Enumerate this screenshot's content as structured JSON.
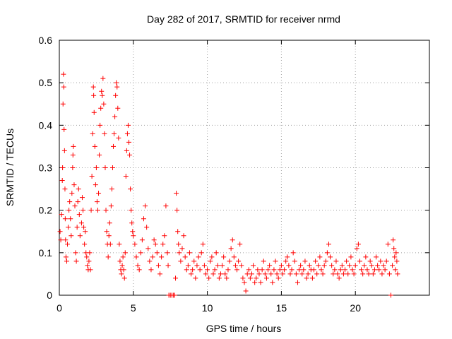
{
  "chart_data": {
    "type": "scatter",
    "title": "Day 282 of 2017, SRMTID for receiver nrmd",
    "xlabel": "GPS time / hours",
    "ylabel": "SRMTID / TECUs",
    "xlim": [
      0,
      25
    ],
    "ylim": [
      0,
      0.6
    ],
    "x_ticks": [
      0,
      5,
      10,
      15,
      20
    ],
    "x_tick_labels": [
      "0",
      "5",
      "10",
      "15",
      "20"
    ],
    "y_ticks": [
      0,
      0.1,
      0.2,
      0.3,
      0.4,
      0.5,
      0.6
    ],
    "y_tick_labels": [
      "0",
      "0.1",
      "0.2",
      "0.3",
      "0.4",
      "0.5",
      "0.6"
    ],
    "grid": true,
    "marker": "+",
    "series": [
      {
        "name": "SRMTID",
        "color": "#ff0000",
        "points": [
          [
            0.05,
            0.15
          ],
          [
            0.1,
            0.13
          ],
          [
            0.15,
            0.19
          ],
          [
            0.2,
            0.27
          ],
          [
            0.22,
            0.3
          ],
          [
            0.25,
            0.45
          ],
          [
            0.28,
            0.52
          ],
          [
            0.3,
            0.49
          ],
          [
            0.32,
            0.39
          ],
          [
            0.35,
            0.34
          ],
          [
            0.38,
            0.25
          ],
          [
            0.4,
            0.18
          ],
          [
            0.42,
            0.13
          ],
          [
            0.45,
            0.09
          ],
          [
            0.5,
            0.08
          ],
          [
            0.55,
            0.12
          ],
          [
            0.6,
            0.16
          ],
          [
            0.65,
            0.2
          ],
          [
            0.7,
            0.22
          ],
          [
            0.75,
            0.18
          ],
          [
            0.8,
            0.14
          ],
          [
            0.85,
            0.24
          ],
          [
            0.9,
            0.3
          ],
          [
            0.92,
            0.33
          ],
          [
            0.95,
            0.35
          ],
          [
            1.0,
            0.26
          ],
          [
            1.05,
            0.21
          ],
          [
            1.1,
            0.1
          ],
          [
            1.15,
            0.08
          ],
          [
            1.2,
            0.16
          ],
          [
            1.25,
            0.22
          ],
          [
            1.3,
            0.25
          ],
          [
            1.35,
            0.19
          ],
          [
            1.4,
            0.14
          ],
          [
            1.5,
            0.17
          ],
          [
            1.55,
            0.23
          ],
          [
            1.6,
            0.2
          ],
          [
            1.65,
            0.16
          ],
          [
            1.7,
            0.12
          ],
          [
            1.75,
            0.15
          ],
          [
            1.8,
            0.1
          ],
          [
            1.85,
            0.09
          ],
          [
            1.9,
            0.07
          ],
          [
            1.95,
            0.06
          ],
          [
            2.0,
            0.08
          ],
          [
            2.05,
            0.1
          ],
          [
            2.1,
            0.06
          ],
          [
            2.15,
            0.2
          ],
          [
            2.2,
            0.28
          ],
          [
            2.25,
            0.38
          ],
          [
            2.3,
            0.49
          ],
          [
            2.32,
            0.47
          ],
          [
            2.35,
            0.43
          ],
          [
            2.4,
            0.35
          ],
          [
            2.45,
            0.26
          ],
          [
            2.5,
            0.3
          ],
          [
            2.55,
            0.22
          ],
          [
            2.6,
            0.2
          ],
          [
            2.65,
            0.24
          ],
          [
            2.7,
            0.33
          ],
          [
            2.75,
            0.4
          ],
          [
            2.8,
            0.44
          ],
          [
            2.85,
            0.48
          ],
          [
            2.9,
            0.47
          ],
          [
            2.95,
            0.51
          ],
          [
            3.0,
            0.45
          ],
          [
            3.05,
            0.38
          ],
          [
            3.1,
            0.3
          ],
          [
            3.15,
            0.2
          ],
          [
            3.2,
            0.15
          ],
          [
            3.25,
            0.12
          ],
          [
            3.3,
            0.09
          ],
          [
            3.35,
            0.14
          ],
          [
            3.4,
            0.17
          ],
          [
            3.45,
            0.12
          ],
          [
            3.5,
            0.21
          ],
          [
            3.55,
            0.25
          ],
          [
            3.6,
            0.3
          ],
          [
            3.65,
            0.35
          ],
          [
            3.7,
            0.38
          ],
          [
            3.75,
            0.42
          ],
          [
            3.8,
            0.47
          ],
          [
            3.85,
            0.5
          ],
          [
            3.9,
            0.49
          ],
          [
            3.95,
            0.44
          ],
          [
            4.0,
            0.37
          ],
          [
            4.05,
            0.12
          ],
          [
            4.1,
            0.08
          ],
          [
            4.15,
            0.06
          ],
          [
            4.2,
            0.05
          ],
          [
            4.25,
            0.07
          ],
          [
            4.3,
            0.09
          ],
          [
            4.35,
            0.06
          ],
          [
            4.4,
            0.04
          ],
          [
            4.45,
            0.1
          ],
          [
            4.5,
            0.28
          ],
          [
            4.55,
            0.34
          ],
          [
            4.6,
            0.38
          ],
          [
            4.65,
            0.4
          ],
          [
            4.7,
            0.36
          ],
          [
            4.75,
            0.33
          ],
          [
            4.8,
            0.25
          ],
          [
            4.85,
            0.2
          ],
          [
            4.9,
            0.17
          ],
          [
            4.95,
            0.15
          ],
          [
            5.0,
            0.14
          ],
          [
            5.1,
            0.12
          ],
          [
            5.2,
            0.09
          ],
          [
            5.3,
            0.07
          ],
          [
            5.4,
            0.06
          ],
          [
            5.5,
            0.1
          ],
          [
            5.6,
            0.13
          ],
          [
            5.7,
            0.18
          ],
          [
            5.8,
            0.21
          ],
          [
            5.9,
            0.16
          ],
          [
            6.0,
            0.11
          ],
          [
            6.1,
            0.08
          ],
          [
            6.2,
            0.06
          ],
          [
            6.3,
            0.09
          ],
          [
            6.4,
            0.13
          ],
          [
            6.5,
            0.12
          ],
          [
            6.6,
            0.1
          ],
          [
            6.7,
            0.07
          ],
          [
            6.8,
            0.05
          ],
          [
            6.9,
            0.09
          ],
          [
            7.0,
            0.12
          ],
          [
            7.1,
            0.14
          ],
          [
            7.2,
            0.21
          ],
          [
            7.3,
            0.1
          ],
          [
            7.35,
            0.07
          ],
          [
            7.4,
            0.0
          ],
          [
            7.5,
            0.0
          ],
          [
            7.6,
            0.0
          ],
          [
            7.7,
            0.0
          ],
          [
            7.8,
            0.0
          ],
          [
            7.85,
            0.04
          ],
          [
            7.9,
            0.24
          ],
          [
            7.95,
            0.2
          ],
          [
            8.0,
            0.15
          ],
          [
            8.05,
            0.12
          ],
          [
            8.1,
            0.1
          ],
          [
            8.2,
            0.08
          ],
          [
            8.3,
            0.11
          ],
          [
            8.4,
            0.14
          ],
          [
            8.5,
            0.09
          ],
          [
            8.6,
            0.06
          ],
          [
            8.7,
            0.07
          ],
          [
            8.8,
            0.1
          ],
          [
            8.9,
            0.05
          ],
          [
            9.0,
            0.06
          ],
          [
            9.1,
            0.08
          ],
          [
            9.2,
            0.04
          ],
          [
            9.3,
            0.07
          ],
          [
            9.4,
            0.09
          ],
          [
            9.5,
            0.06
          ],
          [
            9.6,
            0.1
          ],
          [
            9.7,
            0.12
          ],
          [
            9.8,
            0.07
          ],
          [
            9.9,
            0.05
          ],
          [
            10.0,
            0.06
          ],
          [
            10.1,
            0.04
          ],
          [
            10.2,
            0.08
          ],
          [
            10.3,
            0.09
          ],
          [
            10.4,
            0.05
          ],
          [
            10.5,
            0.06
          ],
          [
            10.6,
            0.1
          ],
          [
            10.7,
            0.07
          ],
          [
            10.8,
            0.04
          ],
          [
            10.9,
            0.05
          ],
          [
            11.0,
            0.07
          ],
          [
            11.1,
            0.09
          ],
          [
            11.2,
            0.05
          ],
          [
            11.3,
            0.04
          ],
          [
            11.4,
            0.06
          ],
          [
            11.5,
            0.08
          ],
          [
            11.6,
            0.11
          ],
          [
            11.7,
            0.13
          ],
          [
            11.8,
            0.09
          ],
          [
            11.9,
            0.07
          ],
          [
            12.0,
            0.06
          ],
          [
            12.1,
            0.08
          ],
          [
            12.2,
            0.12
          ],
          [
            12.3,
            0.07
          ],
          [
            12.4,
            0.04
          ],
          [
            12.5,
            0.03
          ],
          [
            12.6,
            0.01
          ],
          [
            12.7,
            0.05
          ],
          [
            12.8,
            0.06
          ],
          [
            12.9,
            0.04
          ],
          [
            13.0,
            0.05
          ],
          [
            13.1,
            0.07
          ],
          [
            13.2,
            0.03
          ],
          [
            13.3,
            0.04
          ],
          [
            13.4,
            0.06
          ],
          [
            13.5,
            0.05
          ],
          [
            13.6,
            0.03
          ],
          [
            13.7,
            0.06
          ],
          [
            13.8,
            0.08
          ],
          [
            13.9,
            0.05
          ],
          [
            14.0,
            0.04
          ],
          [
            14.1,
            0.06
          ],
          [
            14.2,
            0.07
          ],
          [
            14.3,
            0.05
          ],
          [
            14.4,
            0.03
          ],
          [
            14.5,
            0.06
          ],
          [
            14.6,
            0.08
          ],
          [
            14.7,
            0.05
          ],
          [
            14.8,
            0.04
          ],
          [
            14.9,
            0.06
          ],
          [
            15.0,
            0.07
          ],
          [
            15.1,
            0.05
          ],
          [
            15.2,
            0.06
          ],
          [
            15.3,
            0.08
          ],
          [
            15.4,
            0.09
          ],
          [
            15.5,
            0.07
          ],
          [
            15.6,
            0.05
          ],
          [
            15.7,
            0.06
          ],
          [
            15.8,
            0.1
          ],
          [
            15.9,
            0.08
          ],
          [
            16.0,
            0.05
          ],
          [
            16.1,
            0.03
          ],
          [
            16.2,
            0.06
          ],
          [
            16.3,
            0.07
          ],
          [
            16.4,
            0.05
          ],
          [
            16.5,
            0.06
          ],
          [
            16.6,
            0.08
          ],
          [
            16.7,
            0.04
          ],
          [
            16.8,
            0.05
          ],
          [
            16.9,
            0.07
          ],
          [
            17.0,
            0.06
          ],
          [
            17.1,
            0.04
          ],
          [
            17.2,
            0.06
          ],
          [
            17.3,
            0.08
          ],
          [
            17.4,
            0.05
          ],
          [
            17.5,
            0.07
          ],
          [
            17.6,
            0.09
          ],
          [
            17.7,
            0.06
          ],
          [
            17.8,
            0.05
          ],
          [
            17.9,
            0.07
          ],
          [
            18.0,
            0.08
          ],
          [
            18.1,
            0.1
          ],
          [
            18.2,
            0.12
          ],
          [
            18.3,
            0.09
          ],
          [
            18.4,
            0.07
          ],
          [
            18.5,
            0.05
          ],
          [
            18.6,
            0.06
          ],
          [
            18.7,
            0.08
          ],
          [
            18.8,
            0.05
          ],
          [
            18.9,
            0.04
          ],
          [
            19.0,
            0.06
          ],
          [
            19.1,
            0.07
          ],
          [
            19.2,
            0.05
          ],
          [
            19.3,
            0.06
          ],
          [
            19.4,
            0.08
          ],
          [
            19.5,
            0.05
          ],
          [
            19.6,
            0.07
          ],
          [
            19.7,
            0.09
          ],
          [
            19.8,
            0.06
          ],
          [
            19.9,
            0.05
          ],
          [
            20.0,
            0.07
          ],
          [
            20.1,
            0.11
          ],
          [
            20.2,
            0.12
          ],
          [
            20.3,
            0.08
          ],
          [
            20.4,
            0.06
          ],
          [
            20.5,
            0.05
          ],
          [
            20.6,
            0.07
          ],
          [
            20.7,
            0.09
          ],
          [
            20.8,
            0.06
          ],
          [
            20.9,
            0.05
          ],
          [
            21.0,
            0.08
          ],
          [
            21.1,
            0.07
          ],
          [
            21.2,
            0.05
          ],
          [
            21.3,
            0.06
          ],
          [
            21.4,
            0.09
          ],
          [
            21.5,
            0.07
          ],
          [
            21.6,
            0.06
          ],
          [
            21.7,
            0.08
          ],
          [
            21.8,
            0.05
          ],
          [
            21.9,
            0.07
          ],
          [
            22.0,
            0.06
          ],
          [
            22.1,
            0.08
          ],
          [
            22.2,
            0.12
          ],
          [
            22.3,
            0.05
          ],
          [
            22.4,
            0.0
          ],
          [
            22.5,
            0.07
          ],
          [
            22.55,
            0.13
          ],
          [
            22.6,
            0.11
          ],
          [
            22.65,
            0.09
          ],
          [
            22.7,
            0.06
          ],
          [
            22.75,
            0.1
          ],
          [
            22.8,
            0.08
          ],
          [
            22.85,
            0.05
          ]
        ]
      }
    ]
  }
}
